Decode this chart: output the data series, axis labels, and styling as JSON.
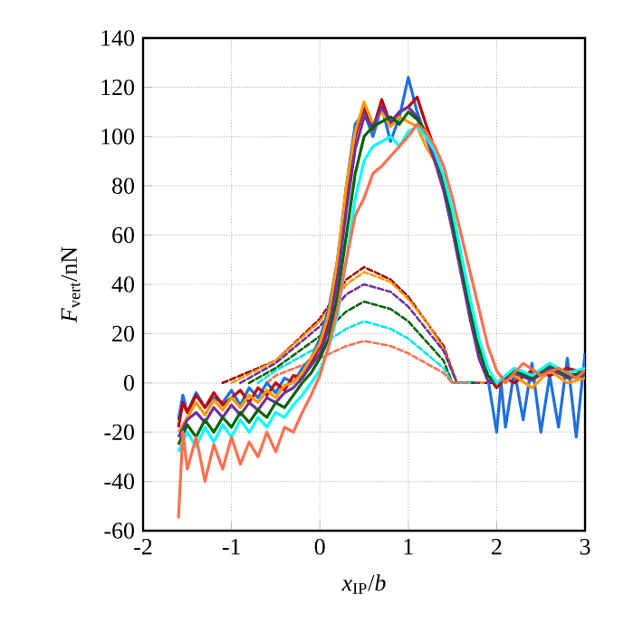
{
  "chart_data": {
    "type": "line",
    "xlabel": "*x*$_{IP}$/*b*",
    "ylabel": "*F*$_{vert}$/nN",
    "xlim": [
      -2,
      3
    ],
    "ylim": [
      -60,
      140
    ],
    "xticks": [
      -2,
      -1,
      0,
      1,
      2,
      3
    ],
    "yticks": [
      -60,
      -40,
      -20,
      0,
      20,
      40,
      60,
      80,
      100,
      120,
      140
    ],
    "grid": true,
    "legend": false,
    "marker": "none",
    "series": [
      {
        "color": "#a00000",
        "line_style": "dashed",
        "x": [
          -1.1,
          -0.5,
          0,
          0.3,
          0.5,
          0.8,
          1.0,
          1.2,
          1.4,
          1.55,
          1.95
        ],
        "values": [
          0,
          9,
          26,
          42,
          47,
          42,
          35,
          25,
          15,
          0,
          0
        ]
      },
      {
        "color": "#ff9900",
        "line_style": "dashed",
        "x": [
          -1.0,
          -0.5,
          0,
          0.3,
          0.5,
          0.8,
          1.0,
          1.2,
          1.4,
          1.55,
          1.85
        ],
        "values": [
          0,
          9,
          25,
          40,
          45,
          41,
          34,
          25,
          14,
          0,
          0
        ]
      },
      {
        "color": "#7030a0",
        "line_style": "dashed",
        "x": [
          -0.9,
          -0.5,
          0,
          0.3,
          0.5,
          0.8,
          1.0,
          1.2,
          1.4,
          1.55,
          1.8
        ],
        "values": [
          0,
          8,
          23,
          36,
          40,
          37,
          31,
          22,
          13,
          0,
          0
        ]
      },
      {
        "color": "#006400",
        "line_style": "dashed",
        "x": [
          -0.8,
          -0.5,
          0,
          0.3,
          0.5,
          0.8,
          1.0,
          1.2,
          1.4,
          1.5,
          1.75
        ],
        "values": [
          0,
          6,
          19,
          29,
          33,
          30,
          25,
          17,
          9,
          0,
          0
        ]
      },
      {
        "color": "#00e5e5",
        "line_style": "dashed",
        "x": [
          -0.7,
          -0.5,
          0,
          0.3,
          0.5,
          0.8,
          1.0,
          1.2,
          1.4,
          1.5,
          1.7
        ],
        "values": [
          0,
          5,
          15,
          22,
          25,
          22,
          18,
          12,
          6,
          0,
          0
        ]
      },
      {
        "color": "#ff7050",
        "line_style": "dashed",
        "x": [
          -0.6,
          -0.5,
          0,
          0.3,
          0.5,
          0.8,
          1.0,
          1.2,
          1.4,
          1.5,
          1.65
        ],
        "values": [
          0,
          3,
          10,
          15,
          17,
          15,
          12,
          8,
          4,
          0,
          0
        ]
      },
      {
        "color": "#1f6fe0",
        "line_style": "solid",
        "x": [
          -1.6,
          -1.55,
          -1.5,
          -1.4,
          -1.3,
          -1.2,
          -1.1,
          -1.0,
          -0.9,
          -0.8,
          -0.7,
          -0.6,
          -0.5,
          -0.4,
          -0.3,
          -0.2,
          -0.1,
          0,
          0.1,
          0.2,
          0.3,
          0.4,
          0.5,
          0.6,
          0.7,
          0.8,
          0.9,
          1.0,
          1.1,
          1.2,
          1.3,
          1.4,
          1.5,
          1.6,
          1.7,
          1.8,
          1.9,
          2.0,
          2.05,
          2.1,
          2.2,
          2.3,
          2.4,
          2.5,
          2.6,
          2.7,
          2.8,
          2.9,
          3.0
        ],
        "values": [
          -15,
          -5,
          -12,
          -4,
          -10,
          -6,
          -8,
          -3,
          -9,
          -2,
          -6,
          0,
          -4,
          2,
          0,
          6,
          10,
          18,
          30,
          50,
          80,
          105,
          110,
          100,
          112,
          98,
          108,
          124,
          110,
          100,
          92,
          80,
          64,
          46,
          28,
          12,
          2,
          -20,
          0,
          -18,
          5,
          -15,
          8,
          -20,
          3,
          -18,
          10,
          -22,
          12
        ]
      },
      {
        "color": "#c00000",
        "line_style": "solid",
        "x": [
          -1.6,
          -1.55,
          -1.5,
          -1.4,
          -1.3,
          -1.2,
          -1.1,
          -1.0,
          -0.9,
          -0.8,
          -0.7,
          -0.6,
          -0.5,
          -0.4,
          -0.3,
          -0.2,
          -0.1,
          0,
          0.1,
          0.2,
          0.3,
          0.4,
          0.5,
          0.6,
          0.7,
          0.8,
          0.9,
          1.0,
          1.1,
          1.2,
          1.3,
          1.4,
          1.5,
          1.6,
          1.7,
          1.8,
          1.9,
          2.0,
          2.1,
          2.2,
          2.4,
          2.6,
          2.8,
          3.0
        ],
        "values": [
          -18,
          -8,
          -12,
          -5,
          -10,
          -4,
          -9,
          -6,
          -3,
          -8,
          -2,
          -5,
          0,
          -3,
          3,
          2,
          8,
          15,
          25,
          45,
          75,
          100,
          112,
          103,
          115,
          105,
          110,
          112,
          116,
          105,
          95,
          82,
          65,
          48,
          30,
          15,
          3,
          -2,
          2,
          0,
          5,
          3,
          6,
          4
        ]
      },
      {
        "color": "#ff9900",
        "line_style": "solid",
        "x": [
          -1.6,
          -1.5,
          -1.4,
          -1.3,
          -1.2,
          -1.1,
          -1.0,
          -0.9,
          -0.8,
          -0.7,
          -0.6,
          -0.5,
          -0.4,
          -0.3,
          -0.2,
          -0.1,
          0,
          0.1,
          0.2,
          0.3,
          0.4,
          0.5,
          0.6,
          0.7,
          0.8,
          0.9,
          1.0,
          1.1,
          1.2,
          1.3,
          1.4,
          1.5,
          1.6,
          1.7,
          1.8,
          1.9,
          2.0,
          2.2,
          2.4,
          2.6,
          2.8,
          3.0
        ],
        "values": [
          -20,
          -14,
          -8,
          -13,
          -7,
          -11,
          -6,
          -10,
          -5,
          -8,
          -3,
          -6,
          -1,
          0,
          4,
          10,
          16,
          28,
          50,
          80,
          102,
          114,
          105,
          110,
          104,
          108,
          106,
          104,
          96,
          90,
          80,
          62,
          45,
          28,
          12,
          2,
          0,
          3,
          -2,
          5,
          0,
          2
        ]
      },
      {
        "color": "#7030a0",
        "line_style": "solid",
        "x": [
          -1.6,
          -1.5,
          -1.4,
          -1.3,
          -1.2,
          -1.1,
          -1.0,
          -0.9,
          -0.8,
          -0.7,
          -0.6,
          -0.5,
          -0.4,
          -0.3,
          -0.2,
          -0.1,
          0,
          0.1,
          0.2,
          0.3,
          0.4,
          0.5,
          0.6,
          0.7,
          0.8,
          0.9,
          1.0,
          1.1,
          1.2,
          1.3,
          1.4,
          1.5,
          1.6,
          1.7,
          1.8,
          1.9,
          2.0,
          2.2,
          2.4,
          2.6,
          2.8,
          3.0
        ],
        "values": [
          -22,
          -15,
          -12,
          -16,
          -10,
          -14,
          -9,
          -13,
          -8,
          -11,
          -6,
          -8,
          -4,
          -2,
          2,
          7,
          12,
          22,
          42,
          70,
          95,
          108,
          104,
          112,
          106,
          110,
          112,
          108,
          100,
          90,
          78,
          62,
          44,
          26,
          10,
          1,
          0,
          4,
          1,
          6,
          2,
          3
        ]
      },
      {
        "color": "#006400",
        "line_style": "solid",
        "x": [
          -1.6,
          -1.5,
          -1.4,
          -1.3,
          -1.2,
          -1.1,
          -1.0,
          -0.9,
          -0.8,
          -0.7,
          -0.6,
          -0.5,
          -0.4,
          -0.3,
          -0.2,
          -0.1,
          0,
          0.1,
          0.2,
          0.3,
          0.4,
          0.5,
          0.6,
          0.7,
          0.8,
          0.9,
          1.0,
          1.1,
          1.2,
          1.3,
          1.4,
          1.5,
          1.6,
          1.7,
          1.8,
          1.9,
          2.0,
          2.2,
          2.4,
          2.6,
          2.8,
          3.0
        ],
        "values": [
          -25,
          -17,
          -22,
          -15,
          -20,
          -14,
          -18,
          -12,
          -16,
          -11,
          -14,
          -8,
          -10,
          -5,
          0,
          4,
          10,
          18,
          35,
          60,
          85,
          100,
          104,
          106,
          108,
          105,
          110,
          107,
          102,
          94,
          82,
          66,
          48,
          30,
          14,
          3,
          0,
          5,
          2,
          7,
          3,
          4
        ]
      },
      {
        "color": "#00ffff",
        "line_style": "solid",
        "x": [
          -1.6,
          -1.5,
          -1.4,
          -1.3,
          -1.2,
          -1.1,
          -1.0,
          -0.9,
          -0.8,
          -0.7,
          -0.6,
          -0.5,
          -0.4,
          -0.3,
          -0.2,
          -0.1,
          0,
          0.1,
          0.2,
          0.3,
          0.4,
          0.5,
          0.6,
          0.7,
          0.8,
          0.9,
          1.0,
          1.1,
          1.2,
          1.3,
          1.4,
          1.5,
          1.6,
          1.7,
          1.8,
          1.9,
          2.0,
          2.2,
          2.4,
          2.6,
          2.8,
          3.0
        ],
        "values": [
          -28,
          -20,
          -26,
          -18,
          -24,
          -17,
          -22,
          -15,
          -20,
          -14,
          -18,
          -12,
          -14,
          -9,
          -5,
          0,
          5,
          14,
          28,
          50,
          75,
          90,
          96,
          98,
          100,
          96,
          102,
          104,
          100,
          94,
          84,
          70,
          52,
          34,
          18,
          6,
          0,
          6,
          3,
          8,
          4,
          6
        ]
      },
      {
        "color": "#ff7050",
        "line_style": "solid",
        "x": [
          -1.6,
          -1.55,
          -1.5,
          -1.4,
          -1.3,
          -1.2,
          -1.1,
          -1.0,
          -0.9,
          -0.8,
          -0.7,
          -0.6,
          -0.5,
          -0.4,
          -0.3,
          -0.2,
          -0.1,
          0,
          0.1,
          0.2,
          0.3,
          0.4,
          0.5,
          0.6,
          0.7,
          0.8,
          0.9,
          1.0,
          1.1,
          1.2,
          1.3,
          1.4,
          1.5,
          1.6,
          1.7,
          1.8,
          1.9,
          2.0,
          2.1,
          2.3,
          2.5,
          2.7,
          2.9,
          3.0
        ],
        "values": [
          -55,
          -20,
          -35,
          -22,
          -40,
          -25,
          -35,
          -22,
          -33,
          -24,
          -30,
          -20,
          -28,
          -18,
          -20,
          -12,
          -5,
          3,
          15,
          30,
          50,
          68,
          75,
          85,
          88,
          92,
          96,
          100,
          105,
          102,
          96,
          88,
          75,
          60,
          45,
          30,
          15,
          5,
          0,
          8,
          3,
          6,
          2,
          5
        ]
      }
    ]
  }
}
